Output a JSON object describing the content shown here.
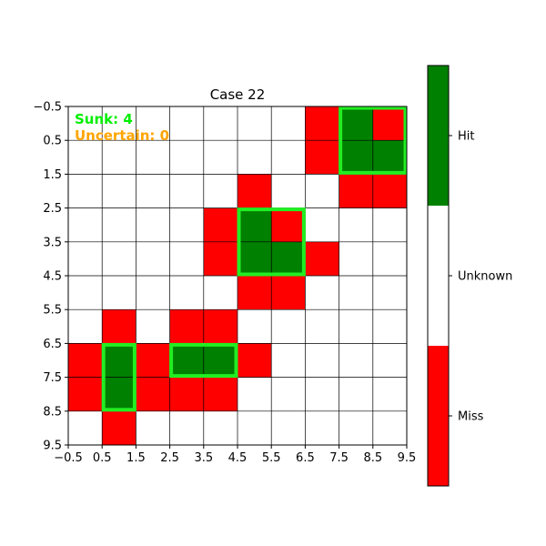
{
  "title": "Case 22",
  "overlay": {
    "sunk_text": "Sunk: 4",
    "uncertain_text": "Uncertain: 0",
    "sunk_color": "#00ee00",
    "uncertain_color": "#ffa500"
  },
  "colors": {
    "hit": "#008000",
    "miss": "#ff0000",
    "unknown": "#ffffff",
    "ship_outline": "#22ee22"
  },
  "colorbar": {
    "labels": [
      "Miss",
      "Unknown",
      "Hit"
    ]
  },
  "chart_data": {
    "type": "heatmap",
    "title": "Case 22",
    "grid_size": 10,
    "x_ticks": [
      "−0.5",
      "0.5",
      "1.5",
      "2.5",
      "3.5",
      "4.5",
      "5.5",
      "6.5",
      "7.5",
      "8.5",
      "9.5"
    ],
    "y_ticks": [
      "−0.5",
      "0.5",
      "1.5",
      "2.5",
      "3.5",
      "4.5",
      "5.5",
      "6.5",
      "7.5",
      "8.5",
      "9.5"
    ],
    "legend": [
      "Miss",
      "Unknown",
      "Hit"
    ],
    "board": [
      "UUUUUUUMHM",
      "UUUUUUUMHH",
      "UUUUUMUUMM",
      "UUUUMHMUUU",
      "UUUUMHHMUU",
      "UUUUUMMUUU",
      "UMUMMUUUUU",
      "MHMHHMUUUU",
      "MHMMMUUUUU",
      "UMUUUUUUUU"
    ],
    "sunk_ships": [
      {
        "row": 0,
        "col": 8,
        "rows": 2,
        "cols": 2
      },
      {
        "row": 3,
        "col": 5,
        "rows": 2,
        "cols": 2
      },
      {
        "row": 7,
        "col": 1,
        "rows": 2,
        "cols": 1
      },
      {
        "row": 7,
        "col": 3,
        "rows": 1,
        "cols": 2
      }
    ]
  }
}
